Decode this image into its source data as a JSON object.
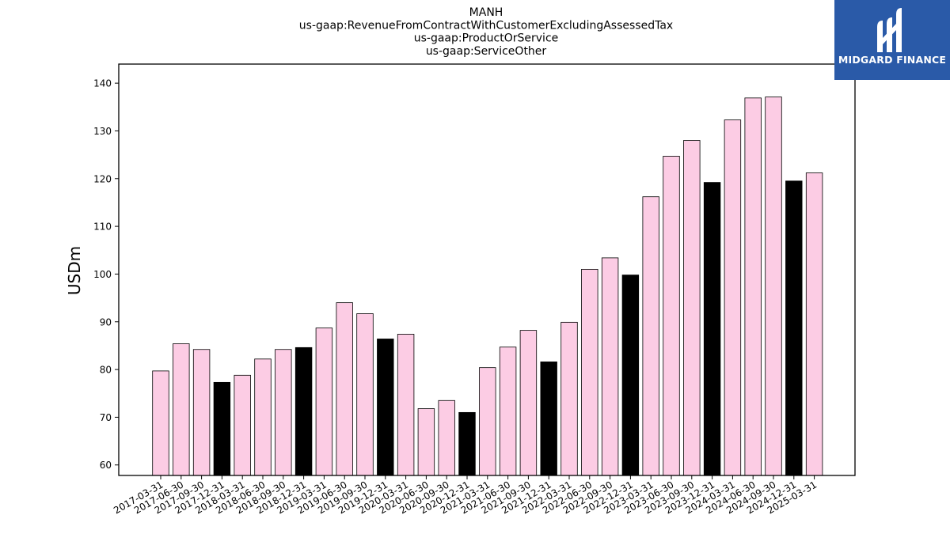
{
  "logo": {
    "text": "MIDGARD FINANCE"
  },
  "colors": {
    "default_bar": "#fccce4",
    "q4_bar": "#000000",
    "logo_bg": "#2a5aa8"
  },
  "chart_data": {
    "type": "bar",
    "title_lines": [
      "MANH",
      "us-gaap:RevenueFromContractWithCustomerExcludingAssessedTax",
      "us-gaap:ProductOrService",
      "us-gaap:ServiceOther"
    ],
    "ylabel": "USDm",
    "xlabel": "",
    "ylim": [
      57.8,
      144
    ],
    "yticks": [
      60,
      70,
      80,
      90,
      100,
      110,
      120,
      130,
      140
    ],
    "categories": [
      "2017-03-31",
      "2017-06-30",
      "2017-09-30",
      "2017-12-31",
      "2018-03-31",
      "2018-06-30",
      "2018-09-30",
      "2018-12-31",
      "2019-03-31",
      "2019-06-30",
      "2019-09-30",
      "2019-12-31",
      "2020-03-31",
      "2020-06-30",
      "2020-09-30",
      "2020-12-31",
      "2021-03-31",
      "2021-06-30",
      "2021-09-30",
      "2021-12-31",
      "2022-03-31",
      "2022-06-30",
      "2022-09-30",
      "2022-12-31",
      "2023-03-31",
      "2023-06-30",
      "2023-09-30",
      "2023-12-31",
      "2024-03-31",
      "2024-06-30",
      "2024-09-30",
      "2024-12-31",
      "2025-03-31"
    ],
    "values": [
      79.7,
      85.4,
      84.2,
      77.3,
      78.8,
      82.2,
      84.2,
      84.6,
      88.7,
      94.0,
      91.7,
      86.4,
      87.4,
      71.8,
      73.5,
      71.0,
      80.4,
      84.7,
      88.2,
      81.6,
      89.9,
      101.0,
      103.4,
      99.8,
      116.2,
      124.7,
      128.0,
      119.2,
      132.3,
      136.9,
      137.1,
      119.5,
      121.2
    ],
    "grid": false,
    "legend": "none"
  }
}
